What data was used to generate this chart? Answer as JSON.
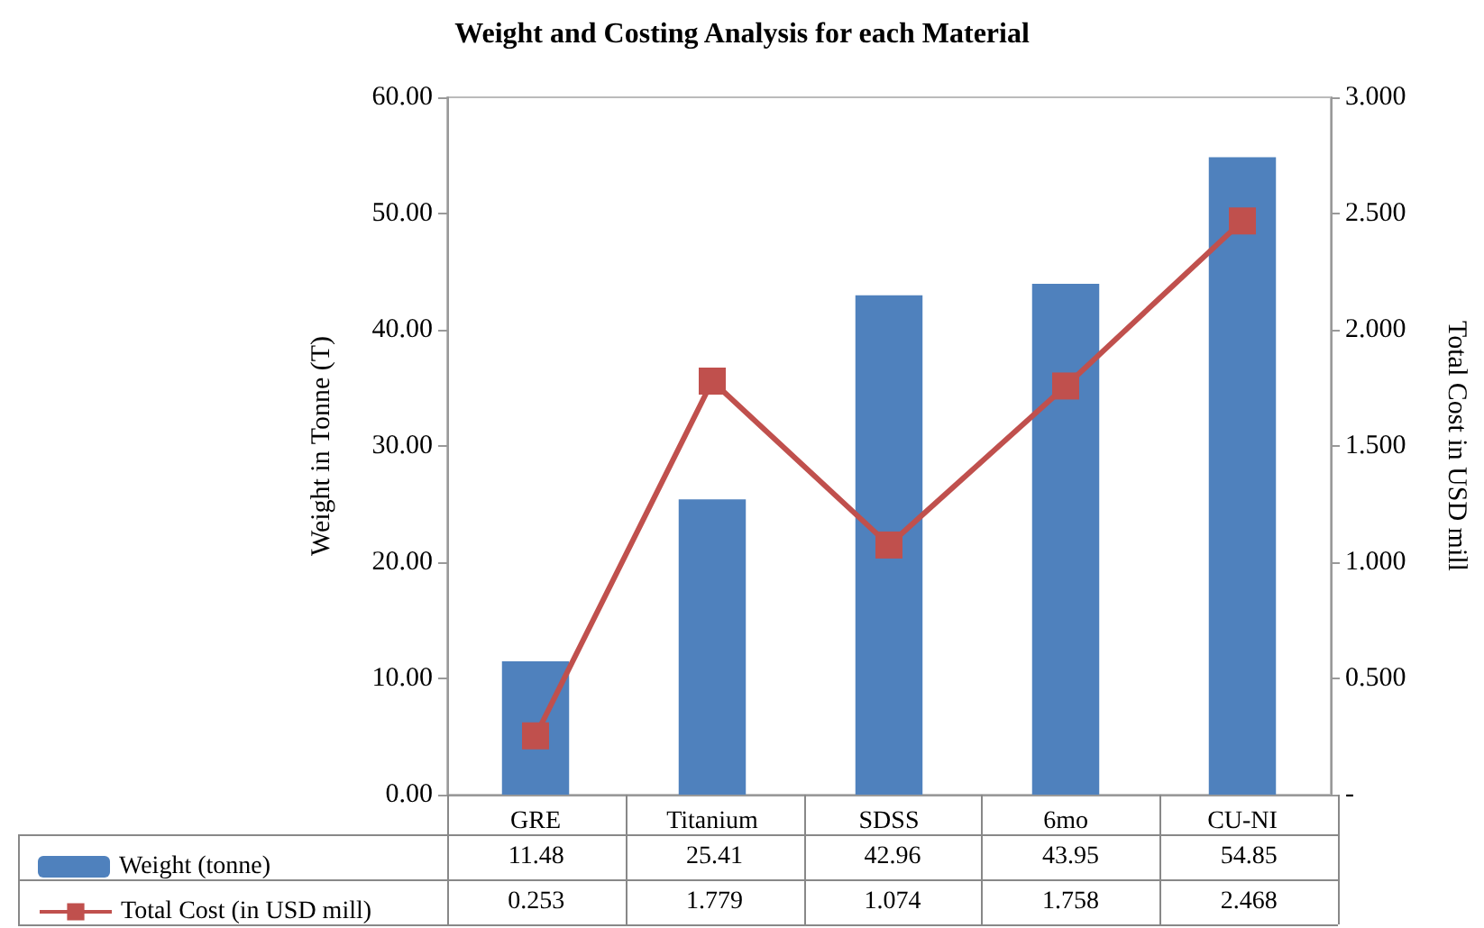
{
  "chart_data": {
    "type": "bar",
    "title": "Weight and Costing Analysis for each Material",
    "ylabel": "Weight in Tonne (T)",
    "y2label": "Total Cost in USD mill",
    "categories": [
      "GRE",
      "Titanium",
      "SDSS",
      "6mo",
      "CU-NI"
    ],
    "series": [
      {
        "name": "Weight (tonne)",
        "color": "#4f81bd",
        "values": [
          11.48,
          25.41,
          42.96,
          43.95,
          54.85
        ]
      },
      {
        "name": "Total Cost (in USD mill)",
        "type": "line",
        "axis": "y2",
        "color": "#c0504d",
        "marker": "square",
        "values": [
          0.253,
          1.779,
          1.074,
          1.758,
          2.468
        ]
      }
    ],
    "ylim": [
      0,
      60
    ],
    "yticks": [
      {
        "value": 0,
        "label": "0.00"
      },
      {
        "value": 10,
        "label": "10.00"
      },
      {
        "value": 20,
        "label": "20.00"
      },
      {
        "value": 30,
        "label": "30.00"
      },
      {
        "value": 40,
        "label": "40.00"
      },
      {
        "value": 50,
        "label": "50.00"
      },
      {
        "value": 60,
        "label": "60.00"
      }
    ],
    "y2lim": [
      0,
      3
    ],
    "y2ticks": [
      {
        "value": 0,
        "label": "-"
      },
      {
        "value": 0.5,
        "label": "0.500"
      },
      {
        "value": 1,
        "label": "1.000"
      },
      {
        "value": 1.5,
        "label": "1.500"
      },
      {
        "value": 2,
        "label": "2.000"
      },
      {
        "value": 2.5,
        "label": "2.500"
      },
      {
        "value": 3,
        "label": "3.000"
      }
    ],
    "grid": false,
    "legend": "bottom left",
    "data_labels": true
  }
}
